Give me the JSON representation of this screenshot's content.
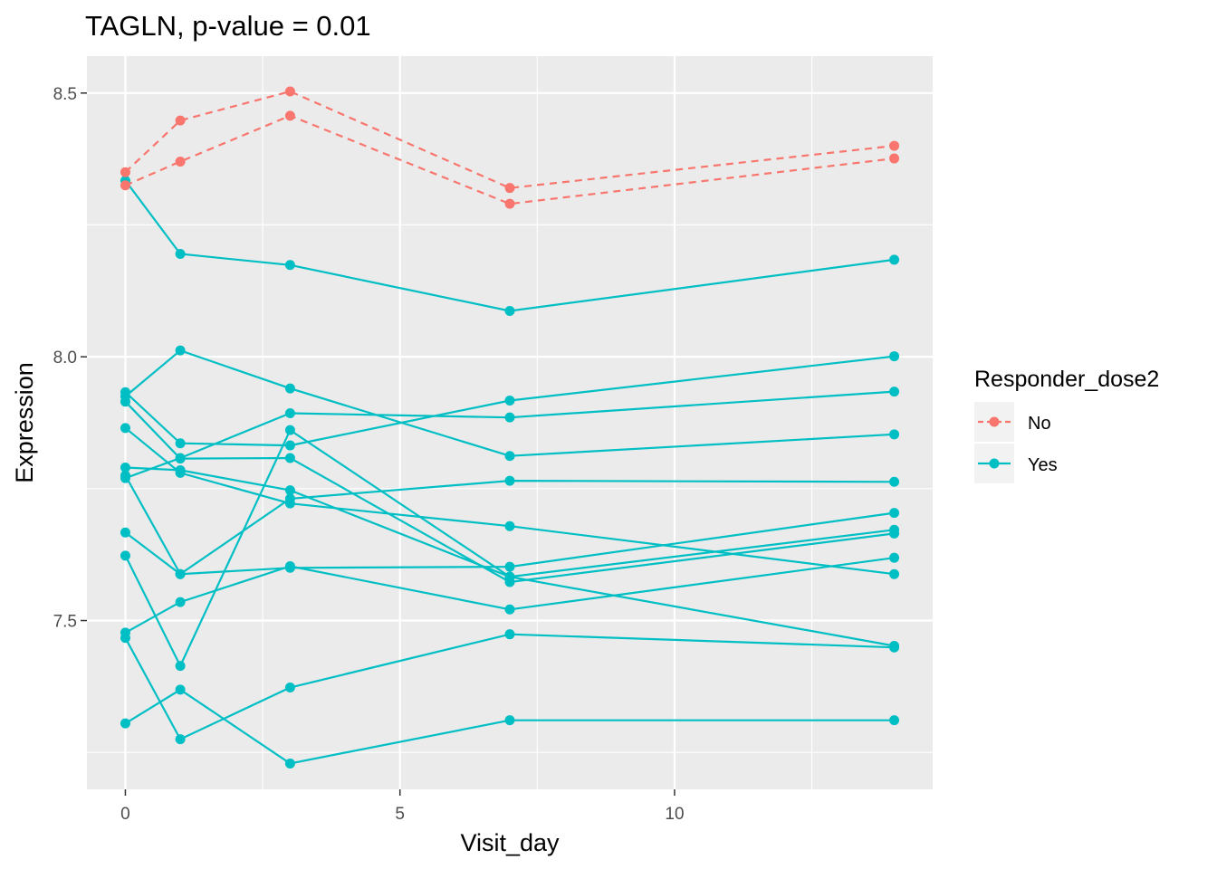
{
  "chart_data": {
    "type": "line",
    "title": "TAGLN, p-value = 0.01",
    "xlabel": "Visit_day",
    "ylabel": "Expression",
    "xlim": [
      -0.7,
      14.7
    ],
    "ylim": [
      7.18,
      8.57
    ],
    "x_ticks": [
      0,
      5,
      10
    ],
    "x_tick_labels": [
      "0",
      "5",
      "10"
    ],
    "x_minor": [
      2.5,
      7.5,
      12.5
    ],
    "y_ticks": [
      7.5,
      8.0,
      8.5
    ],
    "y_tick_labels": [
      "7.5",
      "8.0",
      "8.5"
    ],
    "y_minor": [
      7.25,
      7.75,
      8.25
    ],
    "grid": true,
    "legend": {
      "title": "Responder_dose2",
      "position": "right",
      "entries": [
        {
          "label": "No",
          "color": "#F8766D",
          "dash": "dashed"
        },
        {
          "label": "Yes",
          "color": "#00BFC4",
          "dash": "solid"
        }
      ]
    },
    "panel_background": "#EBEBEB",
    "series": [
      {
        "group": "No",
        "x": [
          0,
          1,
          3,
          7,
          14
        ],
        "y": [
          8.35,
          8.448,
          8.503,
          8.32,
          8.4
        ]
      },
      {
        "group": "No",
        "x": [
          0,
          1,
          3,
          7,
          14
        ],
        "y": [
          8.325,
          8.37,
          8.457,
          8.29,
          8.376
        ]
      },
      {
        "group": "Yes",
        "x": [
          0,
          1,
          3,
          7,
          14
        ],
        "y": [
          8.334,
          8.195,
          8.174,
          8.087,
          8.184
        ]
      },
      {
        "group": "Yes",
        "x": [
          0,
          1,
          3,
          7,
          14
        ],
        "y": [
          7.925,
          8.012,
          7.94,
          7.812,
          7.853
        ]
      },
      {
        "group": "Yes",
        "x": [
          0,
          1,
          3,
          7,
          14
        ],
        "y": [
          7.933,
          7.836,
          7.832,
          7.917,
          8.001
        ]
      },
      {
        "group": "Yes",
        "x": [
          0,
          1,
          3,
          7,
          14
        ],
        "y": [
          7.915,
          7.807,
          7.808,
          7.573,
          7.665
        ]
      },
      {
        "group": "Yes",
        "x": [
          0,
          1,
          3,
          7,
          14
        ],
        "y": [
          7.865,
          7.78,
          7.722,
          7.679,
          7.588
        ]
      },
      {
        "group": "Yes",
        "x": [
          0,
          1,
          3,
          7,
          14
        ],
        "y": [
          7.79,
          7.785,
          7.747,
          7.583,
          7.452
        ]
      },
      {
        "group": "Yes",
        "x": [
          0,
          1,
          3,
          7,
          14
        ],
        "y": [
          7.775,
          7.588,
          7.731,
          7.765,
          7.763
        ]
      },
      {
        "group": "Yes",
        "x": [
          0,
          1,
          3,
          7,
          14
        ],
        "y": [
          7.667,
          7.588,
          7.6,
          7.602,
          7.704
        ]
      },
      {
        "group": "Yes",
        "x": [
          0,
          1,
          3,
          7,
          14
        ],
        "y": [
          7.623,
          7.414,
          7.861,
          7.583,
          7.672
        ]
      },
      {
        "group": "Yes",
        "x": [
          0,
          1,
          3,
          7,
          14
        ],
        "y": [
          7.477,
          7.535,
          7.603,
          7.521,
          7.619
        ]
      },
      {
        "group": "Yes",
        "x": [
          0,
          1,
          3,
          7,
          14
        ],
        "y": [
          7.467,
          7.275,
          7.373,
          7.474,
          7.449
        ]
      },
      {
        "group": "Yes",
        "x": [
          0,
          1,
          3,
          7,
          14
        ],
        "y": [
          7.305,
          7.369,
          7.229,
          7.311,
          7.311
        ]
      },
      {
        "group": "Yes",
        "x": [
          0,
          1,
          3,
          7,
          14
        ],
        "y": [
          7.77,
          7.808,
          7.893,
          7.885,
          7.934
        ]
      }
    ]
  }
}
